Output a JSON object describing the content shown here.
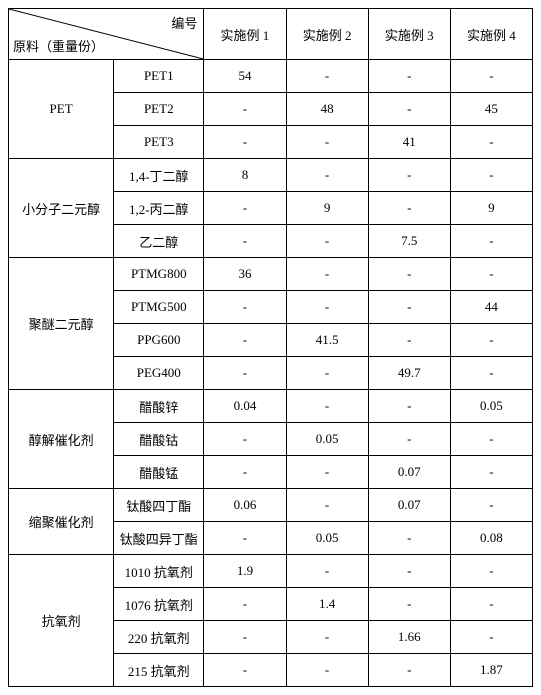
{
  "header": {
    "corner_top": "编号",
    "corner_bottom": "原料（重量份）",
    "cols": [
      "实施例 1",
      "实施例 2",
      "实施例 3",
      "实施例 4"
    ]
  },
  "groups": [
    {
      "name": "PET",
      "rows": [
        {
          "sub": "PET1",
          "vals": [
            "54",
            "-",
            "-",
            "-"
          ]
        },
        {
          "sub": "PET2",
          "vals": [
            "-",
            "48",
            "-",
            "45"
          ]
        },
        {
          "sub": "PET3",
          "vals": [
            "-",
            "-",
            "41",
            "-"
          ]
        }
      ]
    },
    {
      "name": "小分子二元醇",
      "rows": [
        {
          "sub": "1,4-丁二醇",
          "vals": [
            "8",
            "-",
            "-",
            "-"
          ]
        },
        {
          "sub": "1,2-丙二醇",
          "vals": [
            "-",
            "9",
            "-",
            "9"
          ]
        },
        {
          "sub": "乙二醇",
          "vals": [
            "-",
            "-",
            "7.5",
            "-"
          ]
        }
      ]
    },
    {
      "name": "聚醚二元醇",
      "rows": [
        {
          "sub": "PTMG800",
          "vals": [
            "36",
            "-",
            "-",
            "-"
          ]
        },
        {
          "sub": "PTMG500",
          "vals": [
            "-",
            "-",
            "-",
            "44"
          ]
        },
        {
          "sub": "PPG600",
          "vals": [
            "-",
            "41.5",
            "-",
            "-"
          ]
        },
        {
          "sub": "PEG400",
          "vals": [
            "-",
            "-",
            "49.7",
            "-"
          ]
        }
      ]
    },
    {
      "name": "醇解催化剂",
      "rows": [
        {
          "sub": "醋酸锌",
          "vals": [
            "0.04",
            "-",
            "-",
            "0.05"
          ]
        },
        {
          "sub": "醋酸钴",
          "vals": [
            "-",
            "0.05",
            "-",
            "-"
          ]
        },
        {
          "sub": "醋酸锰",
          "vals": [
            "-",
            "-",
            "0.07",
            "-"
          ]
        }
      ]
    },
    {
      "name": "缩聚催化剂",
      "rows": [
        {
          "sub": "钛酸四丁酯",
          "vals": [
            "0.06",
            "-",
            "0.07",
            "-"
          ]
        },
        {
          "sub": "钛酸四异丁酯",
          "vals": [
            "-",
            "0.05",
            "-",
            "0.08"
          ]
        }
      ]
    },
    {
      "name": "抗氧剂",
      "rows": [
        {
          "sub": "1010 抗氧剂",
          "vals": [
            "1.9",
            "-",
            "-",
            "-"
          ]
        },
        {
          "sub": "1076 抗氧剂",
          "vals": [
            "-",
            "1.4",
            "-",
            "-"
          ]
        },
        {
          "sub": "220 抗氧剂",
          "vals": [
            "-",
            "-",
            "1.66",
            "-"
          ]
        },
        {
          "sub": "215 抗氧剂",
          "vals": [
            "-",
            "-",
            "-",
            "1.87"
          ]
        }
      ]
    }
  ]
}
